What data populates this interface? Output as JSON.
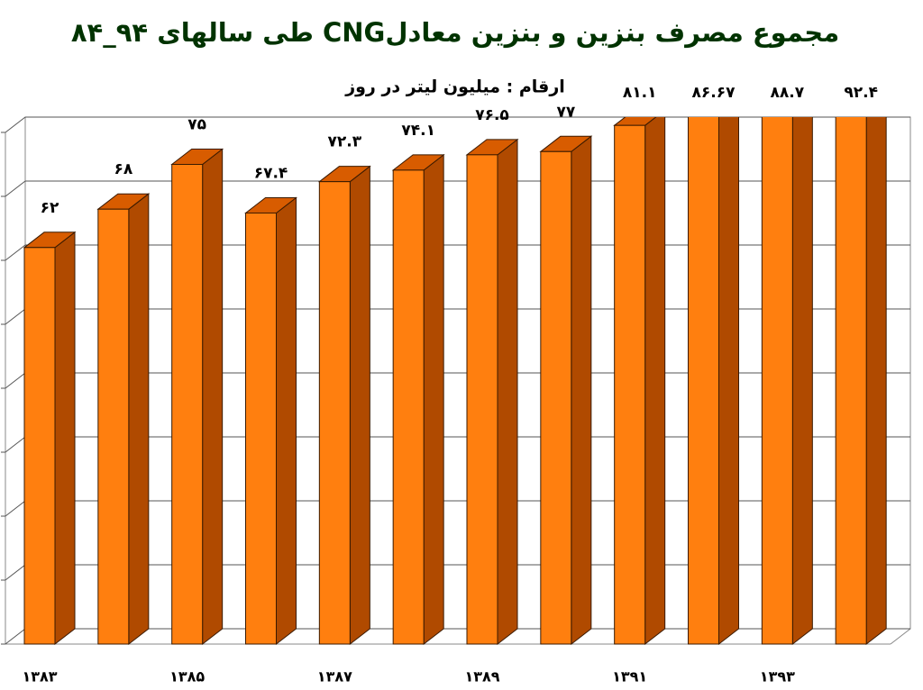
{
  "chart_data": {
    "type": "bar3d",
    "title": "مجموع مصرف بنزین و بنزین معادلCNG طی سالهای ۹۴_۸۴",
    "subtitle": "ارقام : میلیون لیتر در روز",
    "categories": [
      "۱۳۸۳",
      null,
      "۱۳۸۵",
      null,
      "۱۳۸۷",
      null,
      "۱۳۸۹",
      null,
      "۱۳۹۱",
      null,
      "۱۳۹۳",
      null
    ],
    "values": [
      62,
      68,
      75,
      67.4,
      72.3,
      74.1,
      76.5,
      77,
      81.1,
      86.67,
      88.7,
      92.4
    ],
    "value_labels": [
      "۶۲",
      "۶۸",
      "۷۵",
      "۶۷.۴",
      "۷۲.۳",
      "۷۴.۱",
      "۷۶.۵",
      "۷۷",
      "۸۱.۱",
      "۸۶.۶۷",
      "۸۸.۷",
      "۹۲.۴"
    ],
    "colors": {
      "front": "#ff7f0f",
      "side": "#b04a00",
      "top": "#d85c00"
    },
    "ylim": [
      0,
      80
    ],
    "yticks": [
      0,
      10,
      20,
      30,
      40,
      50,
      60,
      70,
      80
    ],
    "grid": true
  }
}
